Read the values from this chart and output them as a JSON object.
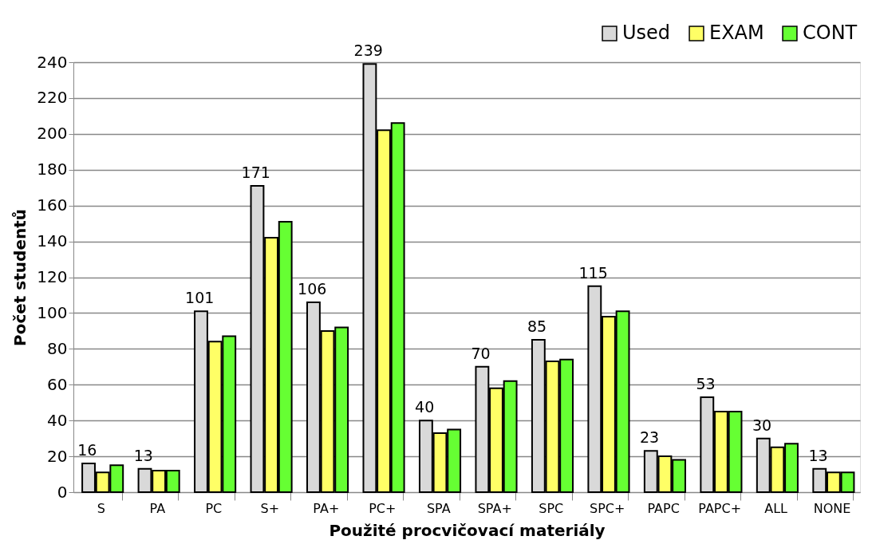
{
  "chart_data": {
    "type": "bar",
    "xlabel": "Použité procvičovací materiály",
    "ylabel": "Počet studentů",
    "categories": [
      "S",
      "PA",
      "PC",
      "S+",
      "PA+",
      "PC+",
      "SPA",
      "SPA+",
      "SPC",
      "SPC+",
      "PAPC",
      "PAPC+",
      "ALL",
      "NONE"
    ],
    "series": [
      {
        "name": "Used",
        "color": "#d9d9d9",
        "values": [
          16,
          13,
          101,
          171,
          106,
          239,
          40,
          70,
          85,
          115,
          23,
          53,
          30,
          13
        ],
        "value_labels": [
          "16",
          "13",
          "101",
          "171",
          "106",
          "239",
          "40",
          "70",
          "85",
          "115",
          "23",
          "53",
          "30",
          "13"
        ]
      },
      {
        "name": "EXAM",
        "color": "#ffff66",
        "values": [
          11,
          12,
          84,
          142,
          90,
          202,
          33,
          58,
          73,
          98,
          20,
          45,
          25,
          11
        ]
      },
      {
        "name": "CONT",
        "color": "#66ff33",
        "values": [
          15,
          12,
          87,
          151,
          92,
          206,
          35,
          62,
          74,
          101,
          18,
          45,
          27,
          11
        ]
      }
    ],
    "ylim": [
      0,
      240
    ],
    "yticks": [
      0,
      20,
      40,
      60,
      80,
      100,
      120,
      140,
      160,
      180,
      200,
      220,
      240
    ],
    "grid": "y",
    "legend": "top right"
  }
}
